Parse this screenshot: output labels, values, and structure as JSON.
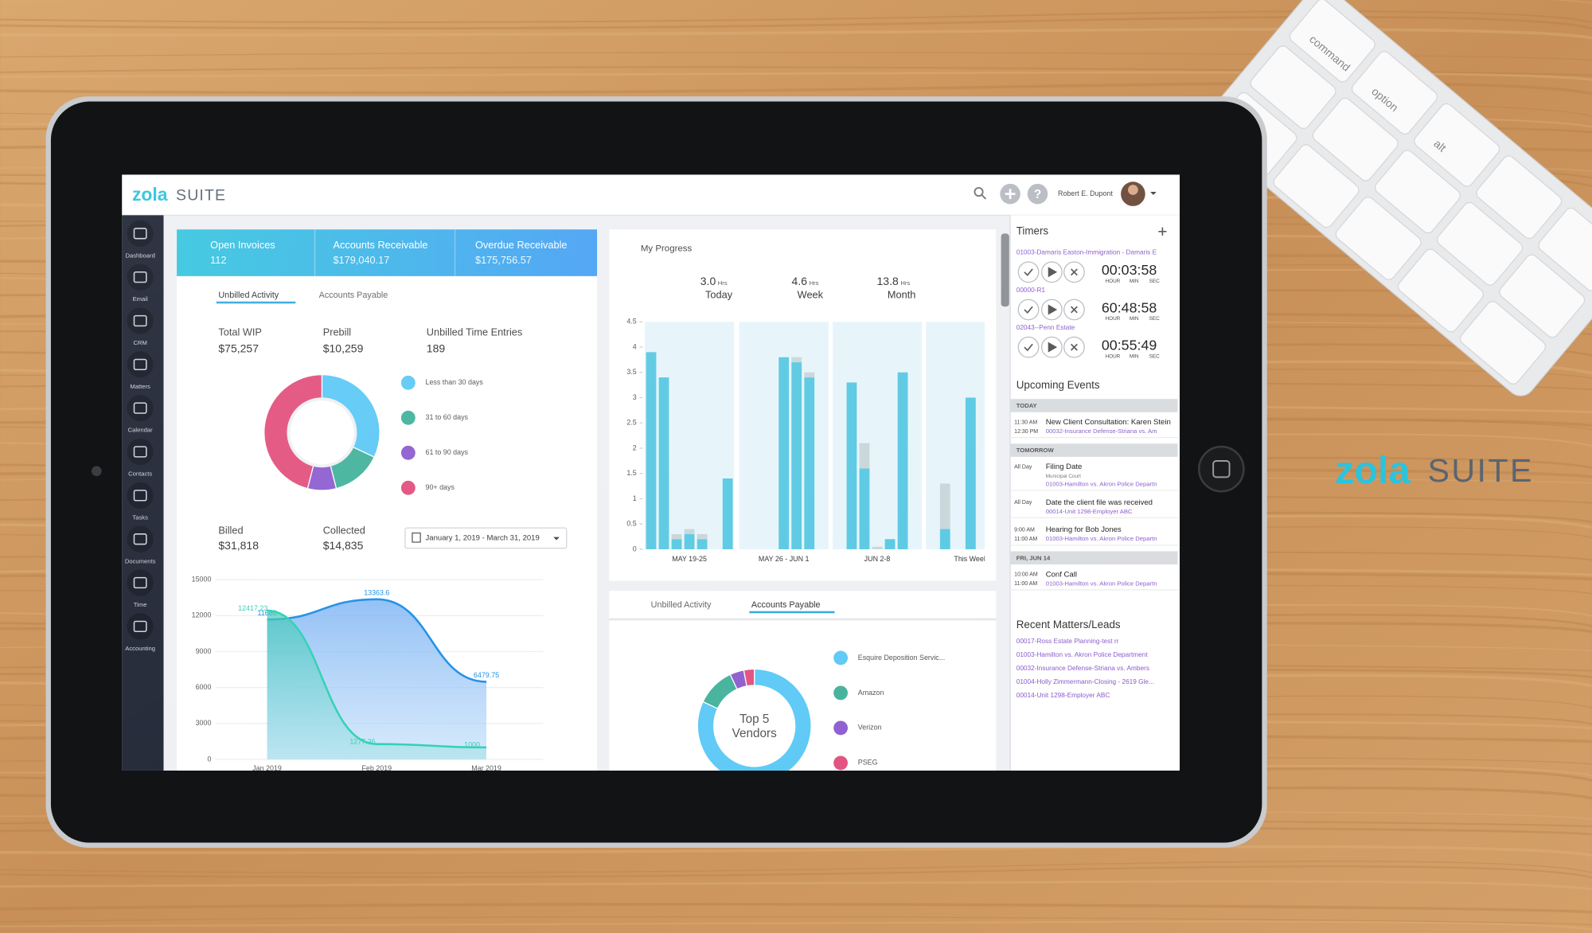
{
  "brand": {
    "logo_main": "zola",
    "logo_suite": "SUITE"
  },
  "header": {
    "user": "Robert E. Dupont"
  },
  "sidebar": [
    "Dashboard",
    "Email",
    "CRM",
    "Matters",
    "Calendar",
    "Contacts",
    "Tasks",
    "Documents",
    "Time",
    "Accounting"
  ],
  "summary": [
    {
      "label": "Open Invoices",
      "value": "112"
    },
    {
      "label": "Accounts Receivable",
      "value": "$179,040.17"
    },
    {
      "label": "Overdue Receivable",
      "value": "$175,756.57"
    }
  ],
  "left_tabs": [
    "Unbilled Activity",
    "Accounts Payable"
  ],
  "stats": [
    {
      "label": "Total WIP",
      "value": "$75,257"
    },
    {
      "label": "Prebill",
      "value": "$10,259"
    },
    {
      "label": "Unbilled Time Entries",
      "value": "189"
    }
  ],
  "aging_donut": {
    "type": "pie",
    "categories": [
      "Less than 30 days",
      "31 to 60 days",
      "61 to 90 days",
      "90+ days"
    ],
    "values": [
      32,
      14,
      8,
      46
    ],
    "colors": [
      "#5ec9f6",
      "#45b39c",
      "#8e5fd0",
      "#e2527f"
    ]
  },
  "billing": [
    {
      "label": "Billed",
      "value": "$31,818"
    },
    {
      "label": "Collected",
      "value": "$14,835"
    }
  ],
  "date_range": "January 1, 2019 - March 31, 2019",
  "line_chart": {
    "type": "line",
    "categories": [
      "Jan 2019",
      "Feb 2019",
      "Mar 2019"
    ],
    "ylim": [
      0,
      15000
    ],
    "yticks": [
      0,
      3000,
      6000,
      9000,
      12000,
      15000
    ],
    "series": [
      {
        "color": "#1b8fe6",
        "values": [
          11680,
          13363.6,
          6479.75
        ]
      },
      {
        "color": "#2fd0b3",
        "values": [
          12417.23,
          1277.36,
          1000
        ]
      }
    ]
  },
  "progress": {
    "title": "My Progress",
    "totals": [
      {
        "value": "3.0",
        "unit": "Hrs",
        "label": "Today"
      },
      {
        "value": "4.6",
        "unit": "Hrs",
        "label": "Week"
      },
      {
        "value": "13.8",
        "unit": "Hrs",
        "label": "Month"
      }
    ],
    "type": "bar",
    "ylim": [
      0,
      4.5
    ],
    "yticks": [
      0,
      0.5,
      1,
      1.5,
      2,
      2.5,
      3,
      3.5,
      4,
      4.5
    ],
    "colors": [
      "#5bc9e3",
      "#c9d6da"
    ],
    "groups": [
      {
        "label": "MAY 19-25",
        "billable": [
          3.9,
          3.4,
          0.2,
          0.3,
          0.2,
          0,
          1.4
        ],
        "other": [
          0,
          0,
          0.1,
          0.1,
          0.1,
          0,
          0
        ]
      },
      {
        "label": "MAY 26 - JUN 1",
        "billable": [
          0,
          0,
          0,
          3.8,
          3.7,
          3.4,
          0
        ],
        "other": [
          0,
          0,
          0,
          0,
          0.1,
          0.1,
          0
        ]
      },
      {
        "label": "JUN 2-8",
        "billable": [
          0,
          3.3,
          1.6,
          0,
          0.2,
          3.5,
          0
        ],
        "other": [
          0,
          0,
          0.5,
          0.05,
          0,
          0,
          0
        ]
      },
      {
        "label": "This Week",
        "billable": [
          0,
          0.4,
          0,
          3,
          0,
          0,
          0
        ],
        "other": [
          0,
          0.9,
          0,
          0,
          0,
          0,
          0
        ]
      }
    ]
  },
  "bottom_tabs": [
    "Unbilled Activity",
    "Accounts Payable"
  ],
  "vendors": {
    "type": "pie",
    "center": [
      "Top 5",
      "Vendors"
    ],
    "categories": [
      "Esquire Deposition Servic...",
      "Amazon",
      "Verizon",
      "PSEG"
    ],
    "values": [
      82,
      11,
      4,
      3
    ],
    "colors": [
      "#5ec9f6",
      "#45b39c",
      "#8e5fd0",
      "#e2527f"
    ]
  },
  "timers": {
    "title": "Timers",
    "units": [
      "HOUR",
      "MIN",
      "SEC"
    ],
    "items": [
      {
        "matter": "01003-Damaris Easton-Immigration - Damaris E",
        "time": "00:03:58"
      },
      {
        "matter": "00000-R1",
        "time": "60:48:58"
      },
      {
        "matter": "02043--Penn Estate",
        "time": "00:55:49"
      }
    ]
  },
  "events": {
    "title": "Upcoming Events",
    "groups": [
      {
        "day": "TODAY",
        "items": [
          {
            "time": [
              "11:30 AM",
              "12:30 PM"
            ],
            "title": "New Client Consultation: Karen Stein",
            "sub": "00032-Insurance Defense-Striana vs. Am"
          }
        ]
      },
      {
        "day": "TOMORROW",
        "items": [
          {
            "time": [
              "All Day"
            ],
            "title": "Filing Date",
            "note": "Municipal Court",
            "sub": "01003-Hamilton vs. Akron Police Departn"
          },
          {
            "time": [
              "All Day"
            ],
            "title": "Date the client file was received",
            "sub": "00014-Unit 1298-Employer ABC"
          },
          {
            "time": [
              "9:00 AM",
              "11:00 AM"
            ],
            "title": "Hearing for Bob Jones",
            "sub": "01003-Hamilton vs. Akron Police Departn"
          }
        ]
      },
      {
        "day": "FRI, JUN 14",
        "items": [
          {
            "time": [
              "10:00 AM",
              "11:00 AM"
            ],
            "title": "Conf Call",
            "sub": "01003-Hamilton vs. Akron Police Departn"
          }
        ]
      }
    ]
  },
  "recent": {
    "title": "Recent Matters/Leads",
    "items": [
      "00017-Ross Estate Planning-test rr",
      "01003-Hamilton vs. Akron Police Department",
      "00032-Insurance Defense-Striana vs. Ambers",
      "01004-Holly Zimmermann-Closing - 2619 Gle...",
      "00014-Unit 1298-Employer ABC"
    ]
  },
  "keyboard": [
    "command",
    "option",
    "alt"
  ]
}
